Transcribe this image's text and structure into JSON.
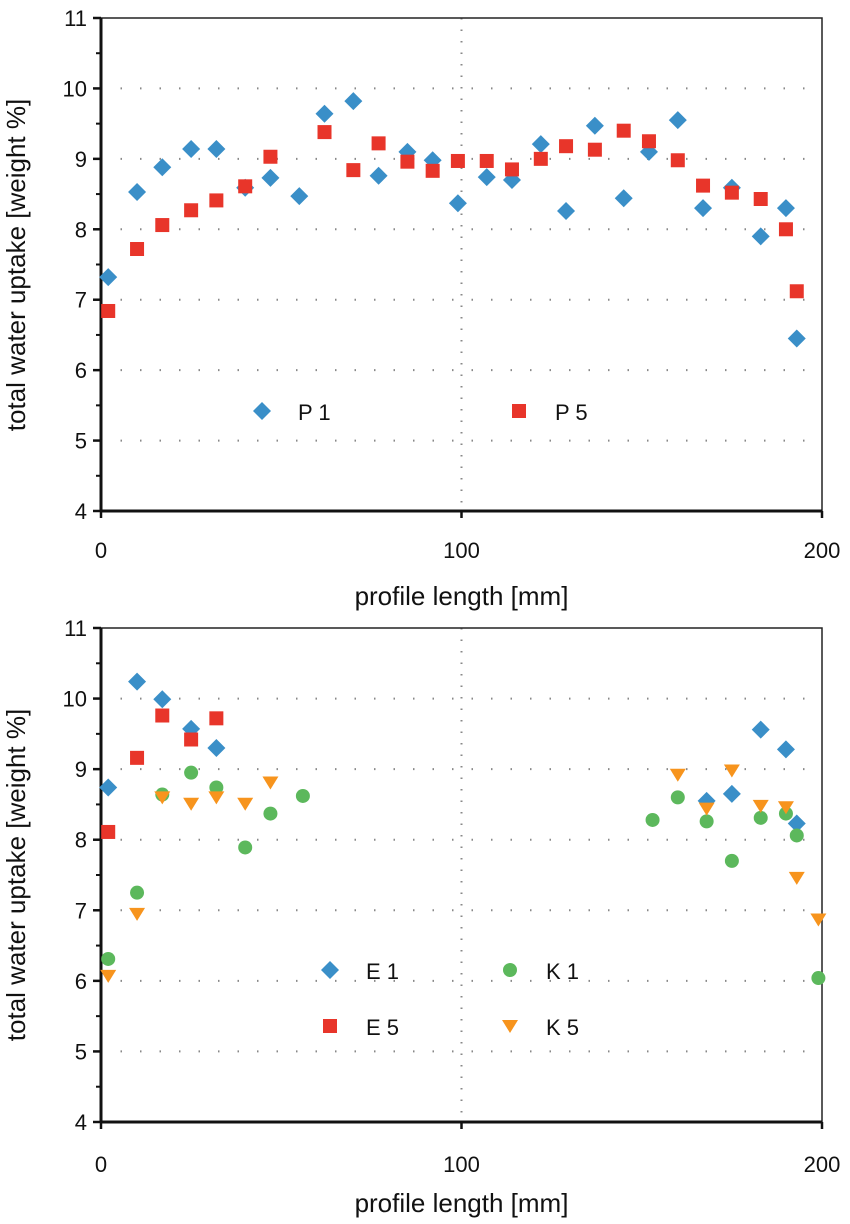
{
  "chart_data": [
    {
      "type": "scatter",
      "xlabel": "profile length [mm]",
      "ylabel": "total water uptake [weight %]",
      "xlim": [
        0,
        200
      ],
      "ylim": [
        4,
        11
      ],
      "xticks": [
        "0",
        "100",
        "200"
      ],
      "yticks": [
        "4",
        "5",
        "6",
        "7",
        "8",
        "9",
        "10",
        "11"
      ],
      "grid": "dotted",
      "legend_position": "center",
      "series": [
        {
          "name": "P 1",
          "marker": "diamond",
          "color": "#3a8fc8",
          "x": [
            2,
            10,
            17,
            25,
            32,
            40,
            47,
            55,
            62,
            70,
            77,
            85,
            92,
            99,
            107,
            114,
            122,
            129,
            137,
            145,
            152,
            160,
            167,
            175,
            183,
            190,
            193
          ],
          "y": [
            7.32,
            8.53,
            8.88,
            9.14,
            9.14,
            8.59,
            8.73,
            8.47,
            9.64,
            9.82,
            8.76,
            9.1,
            8.98,
            8.37,
            8.74,
            8.7,
            9.21,
            8.26,
            9.47,
            8.44,
            9.1,
            9.55,
            8.3,
            8.59,
            7.9,
            8.3,
            6.45
          ]
        },
        {
          "name": "P 5",
          "marker": "square",
          "color": "#e8352a",
          "x": [
            2,
            10,
            17,
            25,
            32,
            40,
            47,
            62,
            70,
            77,
            85,
            92,
            99,
            107,
            114,
            122,
            129,
            137,
            145,
            152,
            160,
            167,
            175,
            183,
            190,
            193
          ],
          "y": [
            6.84,
            7.72,
            8.06,
            8.27,
            8.41,
            8.61,
            9.03,
            9.38,
            8.84,
            9.22,
            8.96,
            8.83,
            8.97,
            8.97,
            8.85,
            9.0,
            9.18,
            9.13,
            9.4,
            9.25,
            8.98,
            8.62,
            8.52,
            8.43,
            8.0,
            7.12
          ]
        }
      ]
    },
    {
      "type": "scatter",
      "xlabel": "profile length [mm]",
      "ylabel": "total water uptake [weight %]",
      "xlim": [
        0,
        200
      ],
      "ylim": [
        4,
        11
      ],
      "xticks": [
        "0",
        "100",
        "200"
      ],
      "yticks": [
        "4",
        "5",
        "6",
        "7",
        "8",
        "9",
        "10",
        "11"
      ],
      "grid": "dotted",
      "legend_position": "center",
      "series": [
        {
          "name": "E 1",
          "marker": "diamond",
          "color": "#3a8fc8",
          "x": [
            2,
            10,
            17,
            25,
            32,
            168,
            175,
            183,
            190,
            193
          ],
          "y": [
            8.74,
            10.24,
            9.99,
            9.57,
            9.3,
            8.55,
            8.65,
            9.56,
            9.28,
            8.23
          ]
        },
        {
          "name": "E 5",
          "marker": "square",
          "color": "#e8352a",
          "x": [
            2,
            10,
            17,
            25,
            32
          ],
          "y": [
            8.11,
            9.16,
            9.76,
            9.42,
            9.72
          ]
        },
        {
          "name": "K 1",
          "marker": "circle",
          "color": "#5cb85c",
          "x": [
            2,
            10,
            17,
            25,
            32,
            40,
            47,
            56,
            153,
            160,
            168,
            175,
            183,
            190,
            193,
            199
          ],
          "y": [
            6.31,
            7.25,
            8.64,
            8.95,
            8.74,
            7.89,
            8.37,
            8.62,
            8.28,
            8.6,
            8.26,
            7.7,
            8.31,
            8.37,
            8.06,
            6.04
          ]
        },
        {
          "name": "K 5",
          "marker": "triangle-down",
          "color": "#f7941d",
          "x": [
            2,
            10,
            17,
            25,
            32,
            40,
            47,
            160,
            168,
            175,
            183,
            190,
            193,
            199
          ],
          "y": [
            6.07,
            6.95,
            8.6,
            8.51,
            8.6,
            8.51,
            8.81,
            8.92,
            8.44,
            8.98,
            8.48,
            8.46,
            7.46,
            6.87
          ]
        }
      ]
    }
  ]
}
